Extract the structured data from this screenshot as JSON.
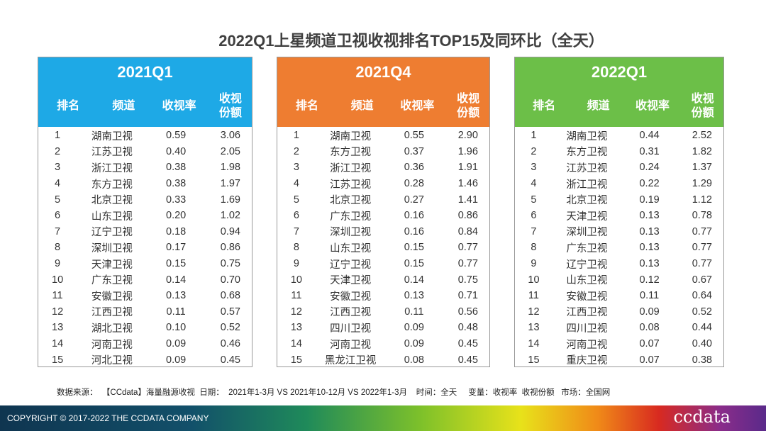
{
  "title": "2022Q1上星频道卫视收视排名TOP15及同环比（全天）",
  "columns": {
    "rank": "排名",
    "channel": "频道",
    "rating": "收视率",
    "share_line1": "收视",
    "share_line2": "份额"
  },
  "panels": [
    {
      "period": "2021Q1",
      "color": "#1ea9e6",
      "rows": [
        [
          "1",
          "湖南卫视",
          "0.59",
          "3.06"
        ],
        [
          "2",
          "江苏卫视",
          "0.40",
          "2.05"
        ],
        [
          "3",
          "浙江卫视",
          "0.38",
          "1.98"
        ],
        [
          "4",
          "东方卫视",
          "0.38",
          "1.97"
        ],
        [
          "5",
          "北京卫视",
          "0.33",
          "1.69"
        ],
        [
          "6",
          "山东卫视",
          "0.20",
          "1.02"
        ],
        [
          "7",
          "辽宁卫视",
          "0.18",
          "0.94"
        ],
        [
          "8",
          "深圳卫视",
          "0.17",
          "0.86"
        ],
        [
          "9",
          "天津卫视",
          "0.15",
          "0.75"
        ],
        [
          "10",
          "广东卫视",
          "0.14",
          "0.70"
        ],
        [
          "11",
          "安徽卫视",
          "0.13",
          "0.68"
        ],
        [
          "12",
          "江西卫视",
          "0.11",
          "0.57"
        ],
        [
          "13",
          "湖北卫视",
          "0.10",
          "0.52"
        ],
        [
          "14",
          "河南卫视",
          "0.09",
          "0.46"
        ],
        [
          "15",
          "河北卫视",
          "0.09",
          "0.45"
        ]
      ]
    },
    {
      "period": "2021Q4",
      "color": "#ee7d31",
      "rows": [
        [
          "1",
          "湖南卫视",
          "0.55",
          "2.90"
        ],
        [
          "2",
          "东方卫视",
          "0.37",
          "1.96"
        ],
        [
          "3",
          "浙江卫视",
          "0.36",
          "1.91"
        ],
        [
          "4",
          "江苏卫视",
          "0.28",
          "1.46"
        ],
        [
          "5",
          "北京卫视",
          "0.27",
          "1.41"
        ],
        [
          "6",
          "广东卫视",
          "0.16",
          "0.86"
        ],
        [
          "7",
          "深圳卫视",
          "0.16",
          "0.84"
        ],
        [
          "8",
          "山东卫视",
          "0.15",
          "0.77"
        ],
        [
          "9",
          "辽宁卫视",
          "0.15",
          "0.77"
        ],
        [
          "10",
          "天津卫视",
          "0.14",
          "0.75"
        ],
        [
          "11",
          "安徽卫视",
          "0.13",
          "0.71"
        ],
        [
          "12",
          "江西卫视",
          "0.11",
          "0.56"
        ],
        [
          "13",
          "四川卫视",
          "0.09",
          "0.48"
        ],
        [
          "14",
          "河南卫视",
          "0.09",
          "0.45"
        ],
        [
          "15",
          "黑龙江卫视",
          "0.08",
          "0.45"
        ]
      ]
    },
    {
      "period": "2022Q1",
      "color": "#6cbf48",
      "rows": [
        [
          "1",
          "湖南卫视",
          "0.44",
          "2.52"
        ],
        [
          "2",
          "东方卫视",
          "0.31",
          "1.82"
        ],
        [
          "3",
          "江苏卫视",
          "0.24",
          "1.37"
        ],
        [
          "4",
          "浙江卫视",
          "0.22",
          "1.29"
        ],
        [
          "5",
          "北京卫视",
          "0.19",
          "1.12"
        ],
        [
          "6",
          "天津卫视",
          "0.13",
          "0.78"
        ],
        [
          "7",
          "深圳卫视",
          "0.13",
          "0.77"
        ],
        [
          "8",
          "广东卫视",
          "0.13",
          "0.77"
        ],
        [
          "9",
          "辽宁卫视",
          "0.13",
          "0.77"
        ],
        [
          "10",
          "山东卫视",
          "0.12",
          "0.67"
        ],
        [
          "11",
          "安徽卫视",
          "0.11",
          "0.64"
        ],
        [
          "12",
          "江西卫视",
          "0.09",
          "0.52"
        ],
        [
          "13",
          "四川卫视",
          "0.08",
          "0.44"
        ],
        [
          "14",
          "河南卫视",
          "0.07",
          "0.40"
        ],
        [
          "15",
          "重庆卫视",
          "0.07",
          "0.38"
        ]
      ]
    }
  ],
  "source": "数据来源：  【CCdata】海量融源收视  日期：  2021年1-3月 VS 2021年10-12月 VS 2022年1-3月    时间：全天     变量：收视率  收视份额   市场：全国网",
  "footer": {
    "copyright": "COPYRIGHT © 2017-2022  THE CCDATA COMPANY",
    "logo": "ccdata"
  }
}
